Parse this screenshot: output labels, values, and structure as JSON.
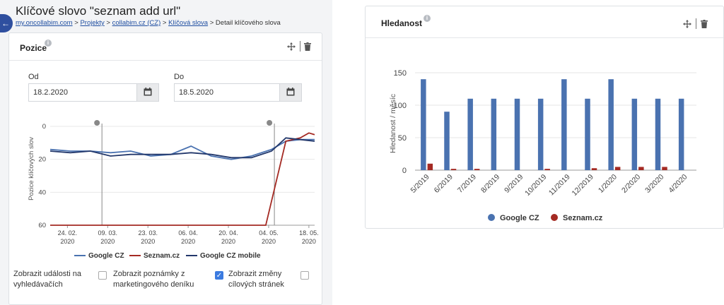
{
  "header": {
    "title": "Klíčové slovo \"seznam add url\"",
    "breadcrumb": [
      "my.oncollabim.com",
      "Projekty",
      "collabim.cz (CZ)",
      "Klíčová slova"
    ],
    "breadcrumb_current": "Detail klíčového slova",
    "separator": ">"
  },
  "pozice": {
    "title": "Pozice",
    "od_label": "Od",
    "od_value": "18.2.2020",
    "do_label": "Do",
    "do_value": "18.5.2020",
    "legend": [
      "Google CZ",
      "Seznam.cz",
      "Google CZ mobile"
    ],
    "options": [
      {
        "label": "Zobrazit události na vyhledávačích",
        "checked": false
      },
      {
        "label": "Zobrazit poznámky z marketingového deníku",
        "checked": false
      },
      {
        "label": "Zobrazit změny cílových stránek",
        "checked": true
      }
    ]
  },
  "hledanost": {
    "title": "Hledanost",
    "legend": [
      "Google CZ",
      "Seznam.cz"
    ]
  },
  "colors": {
    "google": "#4a72b0",
    "seznam": "#a42a23",
    "google_mobile": "#23386b",
    "link": "#1f4ea1",
    "accent": "#2f4f9f"
  },
  "chart_data": [
    {
      "type": "line",
      "ylabel": "Pozice klíčových slov",
      "yticks": [
        "0",
        "20",
        "40",
        "60"
      ],
      "ylim": [
        60,
        0
      ],
      "xticks": [
        {
          "day": "24. 02.",
          "year": "2020"
        },
        {
          "day": "09. 03.",
          "year": "2020"
        },
        {
          "day": "23. 03.",
          "year": "2020"
        },
        {
          "day": "06. 04.",
          "year": "2020"
        },
        {
          "day": "20. 04.",
          "year": "2020"
        },
        {
          "day": "04. 05.",
          "year": "2020"
        },
        {
          "day": "18. 05.",
          "year": "2020"
        }
      ],
      "event_markers": [
        "2020-03-07",
        "2020-05-06"
      ],
      "series": [
        {
          "name": "Google CZ",
          "points": [
            [
              "2020-02-18",
              14
            ],
            [
              "2020-02-25",
              15
            ],
            [
              "2020-03-03",
              15
            ],
            [
              "2020-03-10",
              16
            ],
            [
              "2020-03-17",
              15
            ],
            [
              "2020-03-24",
              18
            ],
            [
              "2020-03-31",
              17
            ],
            [
              "2020-04-07",
              12
            ],
            [
              "2020-04-14",
              18
            ],
            [
              "2020-04-21",
              20
            ],
            [
              "2020-04-28",
              18
            ],
            [
              "2020-05-05",
              14
            ],
            [
              "2020-05-10",
              9
            ],
            [
              "2020-05-15",
              8
            ],
            [
              "2020-05-20",
              8
            ]
          ]
        },
        {
          "name": "Seznam.cz",
          "points": [
            [
              "2020-02-18",
              60
            ],
            [
              "2020-05-03",
              60
            ],
            [
              "2020-05-10",
              9
            ],
            [
              "2020-05-15",
              7
            ],
            [
              "2020-05-18",
              4
            ],
            [
              "2020-05-20",
              5
            ]
          ]
        },
        {
          "name": "Google CZ mobile",
          "points": [
            [
              "2020-02-18",
              15
            ],
            [
              "2020-02-25",
              16
            ],
            [
              "2020-03-03",
              15
            ],
            [
              "2020-03-10",
              18
            ],
            [
              "2020-03-17",
              17
            ],
            [
              "2020-03-24",
              17
            ],
            [
              "2020-03-31",
              17
            ],
            [
              "2020-04-07",
              16
            ],
            [
              "2020-04-14",
              17
            ],
            [
              "2020-04-21",
              19
            ],
            [
              "2020-04-28",
              19
            ],
            [
              "2020-05-05",
              15
            ],
            [
              "2020-05-10",
              7
            ],
            [
              "2020-05-15",
              8
            ],
            [
              "2020-05-20",
              9
            ]
          ]
        }
      ]
    },
    {
      "type": "bar",
      "ylabel": "Hledanost / měsíc",
      "yticks": [
        "0",
        "50",
        "100",
        "150"
      ],
      "ylim": [
        0,
        150
      ],
      "categories": [
        "5/2019",
        "6/2019",
        "7/2019",
        "8/2019",
        "9/2019",
        "10/2019",
        "11/2019",
        "12/2019",
        "1/2020",
        "2/2020",
        "3/2020",
        "4/2020"
      ],
      "series": [
        {
          "name": "Google CZ",
          "values": [
            140,
            90,
            110,
            110,
            110,
            110,
            140,
            110,
            140,
            110,
            110,
            110
          ]
        },
        {
          "name": "Seznam.cz",
          "values": [
            10,
            2,
            2,
            0,
            0,
            2,
            0,
            3,
            5,
            5,
            5,
            0
          ]
        }
      ]
    }
  ]
}
